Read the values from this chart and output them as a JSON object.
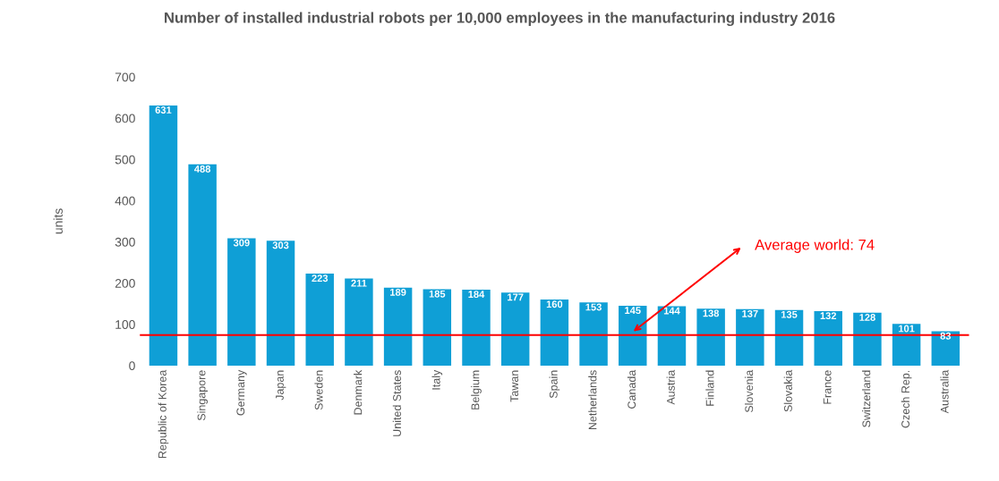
{
  "chart_data": {
    "type": "bar",
    "title": "Number of installed industrial robots per 10,000 employees in the manufacturing industry 2016",
    "ylabel": "units",
    "categories": [
      "Republic of Korea",
      "Singapore",
      "Germany",
      "Japan",
      "Sweden",
      "Denmark",
      "United States",
      "Italy",
      "Belgium",
      "Tawan",
      "Spain",
      "Netherlands",
      "Canada",
      "Austria",
      "Finland",
      "Slovenia",
      "Slovakia",
      "France",
      "Switzerland",
      "Czech Rep.",
      "Australia"
    ],
    "values": [
      631,
      488,
      309,
      303,
      223,
      211,
      189,
      185,
      184,
      177,
      160,
      153,
      145,
      144,
      138,
      137,
      135,
      132,
      128,
      101,
      83
    ],
    "color": "#0f9fd6",
    "ylim": [
      0,
      700
    ],
    "yticks": [
      0,
      100,
      200,
      300,
      400,
      500,
      600,
      700
    ],
    "grid": false,
    "data_labels": true,
    "ref_lines": [
      {
        "axis": "y",
        "value": 74,
        "label": "Average world: 74",
        "color": "#ff0000"
      }
    ]
  }
}
